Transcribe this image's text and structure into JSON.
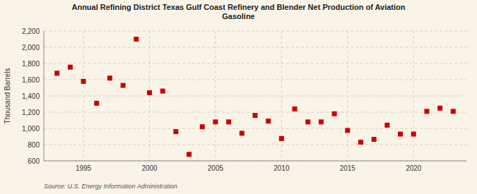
{
  "chart_data": {
    "type": "scatter",
    "title": "Annual Refining District Texas Gulf Coast Refinery and Blender Net Production of Aviation\nGasoline",
    "y_label": "Thousand Barrels",
    "source": "Source: U.S. Energy Information Administration",
    "color": "#cc0000",
    "marker": "square",
    "x": [
      1993,
      1994,
      1995,
      1996,
      1997,
      1998,
      1999,
      2000,
      2001,
      2002,
      2003,
      2004,
      2005,
      2006,
      2007,
      2008,
      2009,
      2010,
      2011,
      2012,
      2013,
      2014,
      2015,
      2016,
      2017,
      2018,
      2019,
      2020,
      2021,
      2022,
      2023
    ],
    "values": [
      1680,
      1755,
      1580,
      1310,
      1620,
      1530,
      2100,
      1440,
      1460,
      960,
      680,
      1020,
      1080,
      1080,
      940,
      1160,
      1090,
      875,
      1240,
      1080,
      1080,
      1180,
      975,
      830,
      865,
      1040,
      930,
      930,
      1210,
      1250,
      1210
    ],
    "xlim": [
      1992,
      2024
    ],
    "ylim": [
      600,
      2200
    ],
    "xticks": [
      1995,
      2000,
      2005,
      2010,
      2015,
      2020
    ],
    "yticks": [
      600,
      800,
      {
        "value": 1000,
        "label": "1,000"
      },
      {
        "value": 1200,
        "label": "1,200"
      },
      {
        "value": 1400,
        "label": "1,400"
      },
      {
        "value": 1600,
        "label": "1,600"
      },
      {
        "value": 1800,
        "label": "1,800"
      },
      {
        "value": 2000,
        "label": "2,000"
      },
      {
        "value": 2200,
        "label": "2,200"
      }
    ],
    "grid": true
  }
}
